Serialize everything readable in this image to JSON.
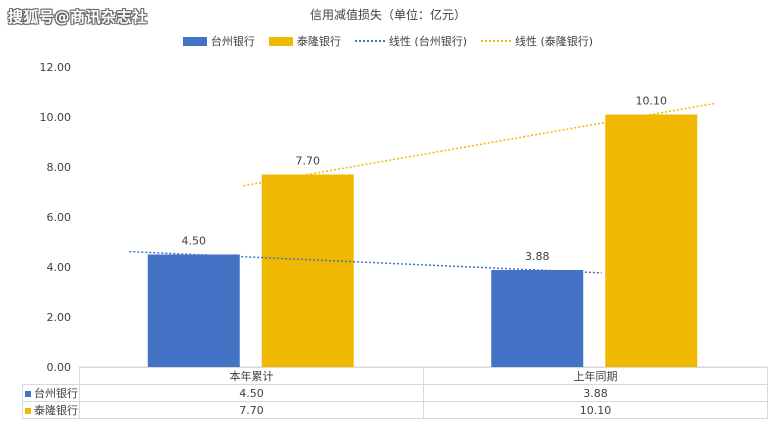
{
  "watermark": "搜狐号@商讯杂志社",
  "chart_data": {
    "type": "bar",
    "title": "信用减值损失（单位：亿元）",
    "categories": [
      "本年累计",
      "上年同期"
    ],
    "series": [
      {
        "name": "台州银行",
        "values": [
          4.5,
          3.88
        ],
        "color": "#4472C4"
      },
      {
        "name": "泰隆银行",
        "values": [
          7.7,
          10.1
        ],
        "color": "#F0B800"
      }
    ],
    "trendlines": [
      {
        "name": "线性 (台州银行)",
        "of": "台州银行",
        "color": "#4472C4"
      },
      {
        "name": "线性 (泰隆银行)",
        "of": "泰隆银行",
        "color": "#F0B800"
      }
    ],
    "y_ticks": [
      "0.00",
      "2.00",
      "4.00",
      "6.00",
      "8.00",
      "10.00",
      "12.00"
    ],
    "ylim": [
      0,
      12
    ],
    "grid": false,
    "legend_position": "top",
    "data_table": true
  }
}
